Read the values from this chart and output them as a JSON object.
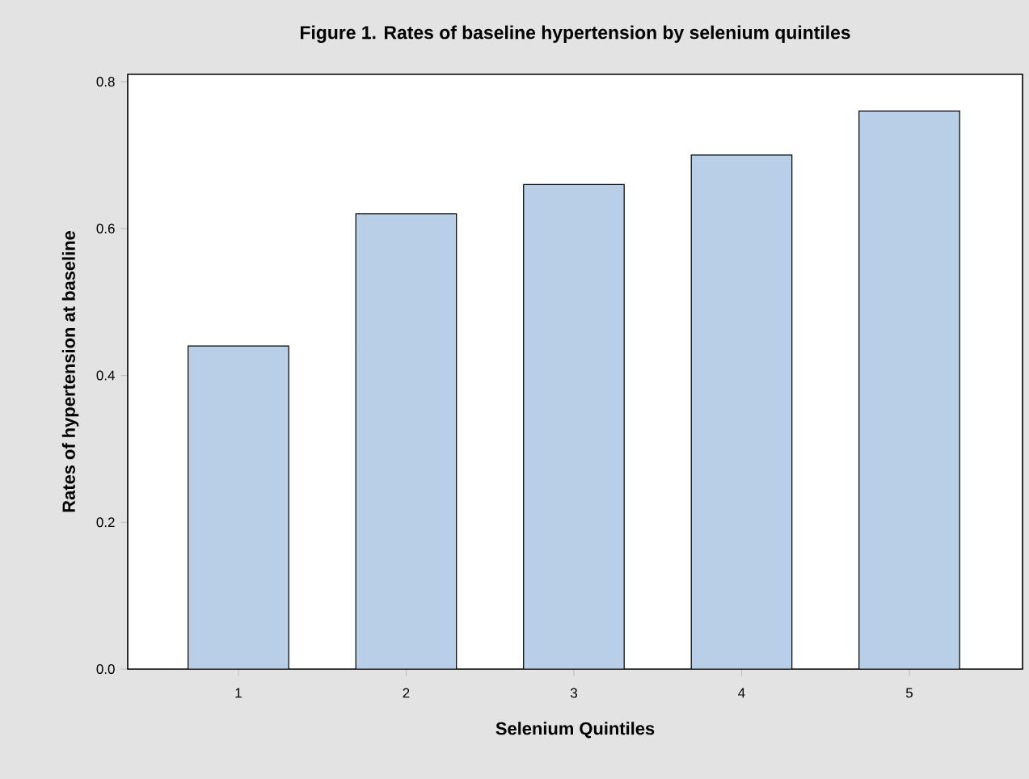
{
  "chart_data": {
    "type": "bar",
    "title": "Figure 1. Rates of baseline hypertension by selenium quintiles",
    "xlabel": "Selenium Quintiles",
    "ylabel": "Rates of hypertension at baseline",
    "categories": [
      "1",
      "2",
      "3",
      "4",
      "5"
    ],
    "values": [
      0.44,
      0.62,
      0.66,
      0.7,
      0.76
    ],
    "color": "#b9cfe7",
    "ylim": [
      0,
      0.81
    ],
    "yticks": [
      {
        "value": 0,
        "label": "0.0"
      },
      {
        "value": 0.2,
        "label": "0.2"
      },
      {
        "value": 0.4,
        "label": "0.4"
      },
      {
        "value": 0.6,
        "label": "0.6"
      },
      {
        "value": 0.8,
        "label": "0.8"
      }
    ],
    "grid": false
  }
}
